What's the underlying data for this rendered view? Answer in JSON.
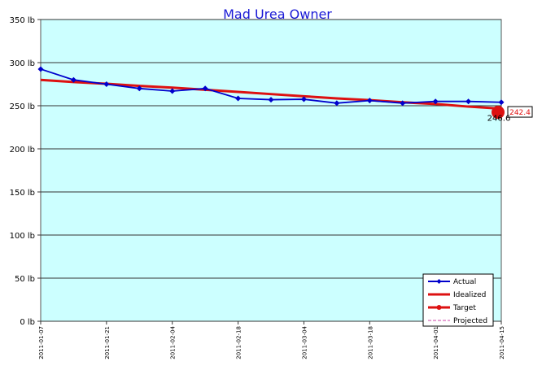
{
  "chart_data": {
    "type": "line",
    "title": "Mad Urea Owner",
    "ylim": [
      0,
      350
    ],
    "yticks": [
      0,
      50,
      100,
      150,
      200,
      250,
      300,
      350
    ],
    "ytick_labels": [
      "0 lb",
      "50 lb",
      "100 lb",
      "150 lb",
      "200 lb",
      "250 lb",
      "300 lb",
      "350 lb"
    ],
    "xlim": [
      "2011-01-07",
      "2011-04-15"
    ],
    "xticks": [
      "2011-01-07",
      "2011-01-21",
      "2011-02-04",
      "2011-02-18",
      "2011-03-04",
      "2011-03-18",
      "2011-04-01",
      "2011-04-15"
    ],
    "grid": "horizontal",
    "background": "#ccffff",
    "series": [
      {
        "name": "Actual",
        "color": "#0000cc",
        "x": [
          "2011-01-07",
          "2011-01-14",
          "2011-01-21",
          "2011-01-28",
          "2011-02-04",
          "2011-02-11",
          "2011-02-18",
          "2011-02-25",
          "2011-03-04",
          "2011-03-11",
          "2011-03-18",
          "2011-03-25",
          "2011-04-01",
          "2011-04-08",
          "2011-04-15"
        ],
        "values": [
          292.5,
          280,
          275,
          270,
          267,
          270,
          258.5,
          257,
          257.5,
          253,
          256,
          253,
          255,
          255,
          254
        ]
      },
      {
        "name": "Idealized",
        "color": "#dd1111",
        "x": [
          "2011-01-07",
          "2011-01-14",
          "2011-01-21",
          "2011-01-28",
          "2011-02-04",
          "2011-02-11",
          "2011-02-18",
          "2011-02-25",
          "2011-03-04",
          "2011-03-11",
          "2011-03-18",
          "2011-03-25",
          "2011-04-01",
          "2011-04-08",
          "2011-04-15"
        ],
        "values": [
          280,
          277.5,
          275.5,
          273,
          271,
          268.5,
          266,
          263.5,
          261,
          258.5,
          256.5,
          254,
          252,
          249,
          246.6
        ]
      },
      {
        "name": "Target",
        "color": "#dd1111",
        "x": [
          "2011-04-15"
        ],
        "values": [
          242.4
        ]
      },
      {
        "name": "Projected",
        "color": "#cc44aa",
        "x": [],
        "values": []
      }
    ],
    "annotations": {
      "idealized_end": "246.6",
      "target": "242.4"
    },
    "legend": {
      "placement": "bottom-right",
      "entries": [
        "Actual",
        "Idealized",
        "Target",
        "Projected"
      ]
    }
  }
}
